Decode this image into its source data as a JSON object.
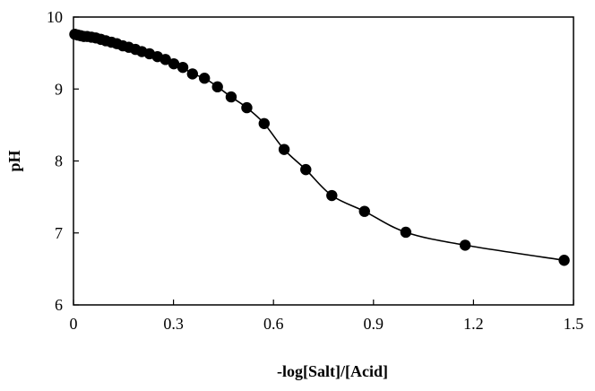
{
  "chart_data": {
    "type": "scatter",
    "title": "",
    "xlabel": "-log[Salt]/[Acid]",
    "ylabel": "pH",
    "xlim": [
      0,
      1.5
    ],
    "ylim": [
      6,
      10
    ],
    "xticks": [
      "0",
      "0.3",
      "0.6",
      "0.9",
      "1.2",
      "1.5"
    ],
    "yticks": [
      "6",
      "7",
      "8",
      "9",
      "10"
    ],
    "grid": false,
    "legend": "none",
    "marker_color": "#000000",
    "line_color": "#000000",
    "series": [
      {
        "x": [
          0.004,
          0.013,
          0.022,
          0.031,
          0.041,
          0.054,
          0.067,
          0.082,
          0.097,
          0.114,
          0.13,
          0.148,
          0.166,
          0.186,
          0.205,
          0.228,
          0.252,
          0.276,
          0.301,
          0.328,
          0.357,
          0.393,
          0.432,
          0.473,
          0.52,
          0.572,
          0.632,
          0.697,
          0.775,
          0.873,
          0.997,
          1.175,
          1.472
        ],
        "y": [
          9.76,
          9.75,
          9.74,
          9.73,
          9.73,
          9.72,
          9.71,
          9.69,
          9.67,
          9.65,
          9.63,
          9.6,
          9.58,
          9.55,
          9.52,
          9.49,
          9.45,
          9.41,
          9.35,
          9.3,
          9.21,
          9.15,
          9.03,
          8.89,
          8.74,
          8.52,
          8.16,
          7.88,
          7.52,
          7.3,
          7.01,
          6.83,
          6.62
        ]
      }
    ]
  }
}
